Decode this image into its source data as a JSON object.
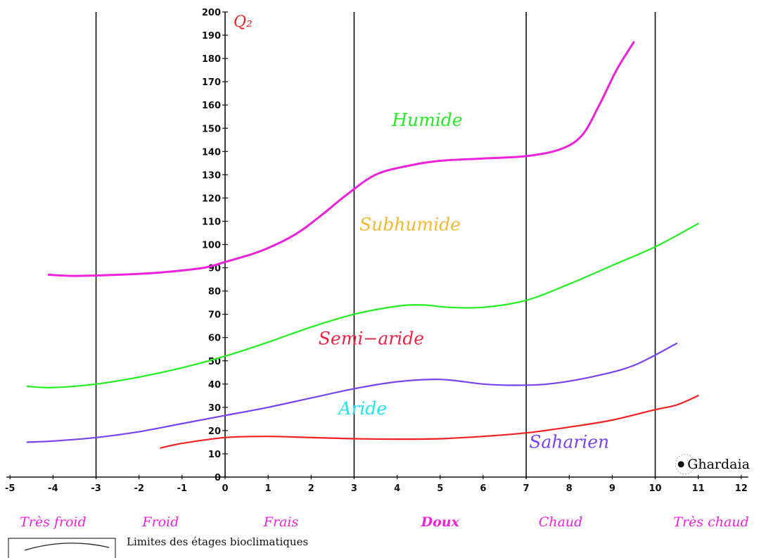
{
  "chart_data": {
    "type": "line",
    "xlim": [
      -5,
      12
    ],
    "ylim": [
      0,
      200
    ],
    "x_ticks": [
      -5,
      -4,
      -3,
      -2,
      -1,
      0,
      1,
      2,
      3,
      4,
      5,
      6,
      7,
      8,
      9,
      10,
      11,
      12
    ],
    "y_ticks": [
      0,
      10,
      20,
      30,
      40,
      50,
      60,
      70,
      80,
      90,
      100,
      110,
      120,
      130,
      140,
      150,
      160,
      170,
      180,
      190,
      200
    ],
    "ylabel": "Q₂",
    "vertical_lines": [
      -3,
      3,
      7,
      10
    ],
    "series": [
      {
        "color": "#ee22dd",
        "points": [
          [
            -4.1,
            87
          ],
          [
            -3.5,
            86.5
          ],
          [
            -2.5,
            87
          ],
          [
            -1.5,
            88
          ],
          [
            -0.5,
            90
          ],
          [
            0,
            92.5
          ],
          [
            0.8,
            97
          ],
          [
            1.6,
            104
          ],
          [
            2.2,
            112
          ],
          [
            2.8,
            121
          ],
          [
            3.5,
            130
          ],
          [
            4.3,
            134
          ],
          [
            5,
            136
          ],
          [
            6,
            137
          ],
          [
            7,
            138
          ],
          [
            7.8,
            141
          ],
          [
            8.3,
            147
          ],
          [
            8.7,
            160
          ],
          [
            9.1,
            175
          ],
          [
            9.5,
            187
          ]
        ]
      },
      {
        "color": "#22ee22",
        "points": [
          [
            -4.6,
            39
          ],
          [
            -4,
            38.5
          ],
          [
            -3,
            40
          ],
          [
            -2,
            43
          ],
          [
            -1,
            47
          ],
          [
            0,
            52
          ],
          [
            1,
            58
          ],
          [
            2,
            64.5
          ],
          [
            3,
            70
          ],
          [
            4,
            73.5
          ],
          [
            4.6,
            74
          ],
          [
            5.2,
            73
          ],
          [
            6,
            73
          ],
          [
            7,
            76
          ],
          [
            8,
            83
          ],
          [
            9,
            91
          ],
          [
            10,
            99
          ],
          [
            11,
            109
          ]
        ]
      },
      {
        "color": "#7744ee",
        "points": [
          [
            -4.6,
            15
          ],
          [
            -4,
            15.5
          ],
          [
            -3,
            17
          ],
          [
            -2,
            19.5
          ],
          [
            -1,
            23
          ],
          [
            0,
            26.5
          ],
          [
            1,
            30
          ],
          [
            2,
            34
          ],
          [
            3,
            38
          ],
          [
            4,
            41
          ],
          [
            5,
            42
          ],
          [
            6,
            40
          ],
          [
            6.7,
            39.5
          ],
          [
            7.5,
            40
          ],
          [
            8.5,
            43
          ],
          [
            9.5,
            48
          ],
          [
            10.5,
            57.5
          ]
        ]
      },
      {
        "color": "#ee2222",
        "points": [
          [
            -1.5,
            12.5
          ],
          [
            -1,
            14.5
          ],
          [
            0,
            17
          ],
          [
            1,
            17.5
          ],
          [
            2,
            17
          ],
          [
            3,
            16.5
          ],
          [
            4,
            16.3
          ],
          [
            5,
            16.5
          ],
          [
            6,
            17.5
          ],
          [
            7,
            19
          ],
          [
            8,
            21.5
          ],
          [
            9,
            24.5
          ],
          [
            10,
            29
          ],
          [
            10.5,
            31
          ],
          [
            11,
            35
          ]
        ]
      }
    ],
    "annotations": [
      {
        "text": "Humide",
        "x": 4.7,
        "y": 151,
        "color": "#22ee22"
      },
      {
        "text": "Subhumide",
        "x": 4.3,
        "y": 106,
        "color": "#f5b833"
      },
      {
        "text": "Semi−aride",
        "x": 3.4,
        "y": 57,
        "color": "#ee2244"
      },
      {
        "text": "Aride",
        "x": 3.2,
        "y": 27,
        "color": "#22e5ee"
      },
      {
        "text": "Saharien",
        "x": 8.0,
        "y": 12.5,
        "color": "#7744ee"
      }
    ],
    "station": {
      "name": "Ghardaia",
      "x": 10.6,
      "y": 5.5
    },
    "climate_labels": [
      {
        "text": "Très froid",
        "x": -4.0
      },
      {
        "text": "Froid",
        "x": -1.5
      },
      {
        "text": "Frais",
        "x": 1.3
      },
      {
        "text": "Doux",
        "x": 5.0,
        "emphasis": true
      },
      {
        "text": "Chaud",
        "x": 7.8
      },
      {
        "text": "Très chaud",
        "x": 11.3
      }
    ],
    "legend": {
      "label": "Limites des étages bioclimatiques",
      "position": "bottom-left"
    }
  }
}
